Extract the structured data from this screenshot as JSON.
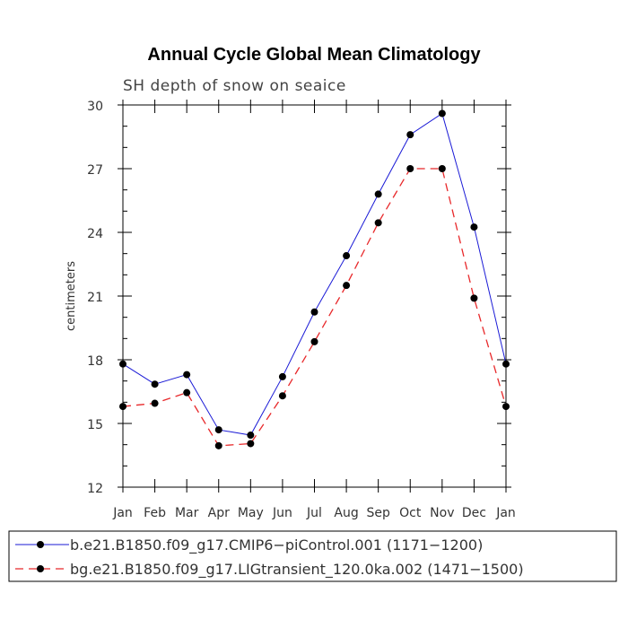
{
  "chart_data": {
    "type": "line",
    "title": "Annual Cycle Global Mean Climatology",
    "subtitle": "SH depth of snow on seaice",
    "ylabel": "centimeters",
    "xlabel": "",
    "categories": [
      "Jan",
      "Feb",
      "Mar",
      "Apr",
      "May",
      "Jun",
      "Jul",
      "Aug",
      "Sep",
      "Oct",
      "Nov",
      "Dec",
      "Jan"
    ],
    "ylim": [
      12,
      30
    ],
    "yticks": [
      "12",
      "15",
      "18",
      "21",
      "24",
      "27",
      "30"
    ],
    "yminor_step": 1,
    "series": [
      {
        "name": "b.e21.B1850.f09_g17.CMIP6−piControl.001 (1171−1200)",
        "color": "#1a1ad6",
        "dash": "solid",
        "values": [
          17.8,
          16.85,
          17.3,
          14.7,
          14.45,
          17.2,
          20.25,
          22.9,
          25.8,
          28.6,
          29.6,
          24.25,
          17.8
        ]
      },
      {
        "name": "bg.e21.B1850.f09_g17.LIGtransient_120.0ka.002 (1471−1500)",
        "color": "#e8282a",
        "dash": "dashed",
        "values": [
          15.8,
          15.95,
          16.45,
          13.95,
          14.05,
          16.3,
          18.85,
          21.5,
          24.45,
          27.0,
          27.0,
          20.9,
          15.8
        ]
      }
    ],
    "legend_position": "bottom"
  }
}
